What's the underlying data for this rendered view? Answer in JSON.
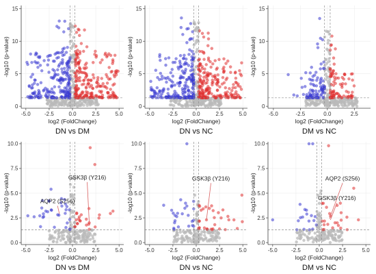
{
  "chart_data": [
    {
      "type": "scatter",
      "title": "DN vs DM",
      "xlabel": "log2 (FoldChange)",
      "ylabel": "-log10 (p-value)",
      "xlim": [
        -5.5,
        5.5
      ],
      "ylim": [
        -0.3,
        15.5
      ],
      "xticks": [
        -5.0,
        -2.5,
        0.0,
        2.5,
        5.0
      ],
      "xtick_labels": [
        "-5.0",
        "-2.5",
        "0.0",
        "2.5",
        "5.0"
      ],
      "yticks": [
        0,
        5,
        10,
        15
      ],
      "ytick_labels": [
        "0",
        "5",
        "10",
        "15"
      ],
      "threshold_x": [
        -0.26,
        0.26
      ],
      "threshold_y": 1.3,
      "grid": true,
      "annotations": [],
      "clusters": [
        {
          "series": "down",
          "x": [
            -4.9,
            -0.26
          ],
          "y": [
            1.3,
            8.5
          ],
          "n": 190,
          "skew": 0.4
        },
        {
          "series": "down",
          "x": [
            -1.8,
            -0.26
          ],
          "y": [
            4,
            14.5
          ],
          "n": 35,
          "skew": 0.5
        },
        {
          "series": "up",
          "x": [
            0.26,
            4.9
          ],
          "y": [
            1.3,
            8.5
          ],
          "n": 200,
          "skew": 0.4
        },
        {
          "series": "up",
          "x": [
            0.26,
            1.8
          ],
          "y": [
            4,
            13
          ],
          "n": 30,
          "skew": 0.5
        },
        {
          "series": "ns",
          "x": [
            -2.8,
            2.8
          ],
          "y": [
            0,
            1.3
          ],
          "n": 160,
          "skew": 1
        },
        {
          "series": "ns",
          "x": [
            -0.26,
            0.26
          ],
          "y": [
            0,
            13
          ],
          "n": 60,
          "skew": 0.7
        }
      ]
    },
    {
      "type": "scatter",
      "title": "DN vs NC",
      "xlabel": "log2 (FoldChange)",
      "ylabel": "-log10 (p-value)",
      "xlim": [
        -5.5,
        5.5
      ],
      "ylim": [
        -0.3,
        15.5
      ],
      "xticks": [
        -5.0,
        -2.5,
        0.0,
        2.5,
        5.0
      ],
      "xtick_labels": [
        "-5.0",
        "-2.5",
        "0.0",
        "2.5",
        "5.0"
      ],
      "yticks": [
        0,
        5,
        10,
        15
      ],
      "ytick_labels": [
        "0",
        "5",
        "10",
        "15"
      ],
      "threshold_x": [
        -0.26,
        0.26
      ],
      "threshold_y": 1.3,
      "grid": true,
      "annotations": [],
      "clusters": [
        {
          "series": "down",
          "x": [
            -4.9,
            -0.26
          ],
          "y": [
            1.3,
            8
          ],
          "n": 200,
          "skew": 0.4
        },
        {
          "series": "down",
          "x": [
            -1.8,
            -0.26
          ],
          "y": [
            4,
            14.5
          ],
          "n": 35,
          "skew": 0.5
        },
        {
          "series": "up",
          "x": [
            0.26,
            4.9
          ],
          "y": [
            1.3,
            7.5
          ],
          "n": 200,
          "skew": 0.4
        },
        {
          "series": "up",
          "x": [
            0.26,
            1.8
          ],
          "y": [
            4,
            12
          ],
          "n": 25,
          "skew": 0.5
        },
        {
          "series": "ns",
          "x": [
            -2.8,
            2.8
          ],
          "y": [
            0,
            1.3
          ],
          "n": 160,
          "skew": 1
        },
        {
          "series": "ns",
          "x": [
            -0.26,
            0.26
          ],
          "y": [
            0,
            13
          ],
          "n": 55,
          "skew": 0.7
        }
      ]
    },
    {
      "type": "scatter",
      "title": "DM vs NC",
      "xlabel": "log2 (FoldChange)",
      "ylabel": "-log10 (p-value)",
      "xlim": [
        -5.5,
        4.0
      ],
      "ylim": [
        -0.3,
        15.5
      ],
      "xticks": [
        -5.0,
        -2.5,
        0.0,
        2.5
      ],
      "xtick_labels": [
        "-5.0",
        "-2.5",
        "0.0",
        "2.5"
      ],
      "yticks": [
        0,
        5,
        10,
        15
      ],
      "ytick_labels": [
        "0",
        "5",
        "10",
        "15"
      ],
      "threshold_x": [
        -0.26,
        0.26
      ],
      "threshold_y": 1.3,
      "grid": true,
      "annotations": [],
      "clusters": [
        {
          "series": "down",
          "x": [
            -2.0,
            -0.26
          ],
          "y": [
            1.3,
            6
          ],
          "n": 70,
          "skew": 0.4
        },
        {
          "series": "down",
          "x": [
            -1.0,
            -0.26
          ],
          "y": [
            3,
            13.5
          ],
          "n": 14,
          "skew": 0.5
        },
        {
          "series": "down",
          "x": [
            -4.0,
            -1.5
          ],
          "y": [
            1.3,
            5
          ],
          "n": 10,
          "skew": 0.6
        },
        {
          "series": "up",
          "x": [
            0.26,
            2.5
          ],
          "y": [
            1.3,
            6
          ],
          "n": 80,
          "skew": 0.4
        },
        {
          "series": "up",
          "x": [
            0.26,
            1.0
          ],
          "y": [
            3,
            11
          ],
          "n": 12,
          "skew": 0.5
        },
        {
          "series": "ns",
          "x": [
            -2.0,
            2.8
          ],
          "y": [
            0,
            1.3
          ],
          "n": 160,
          "skew": 1
        },
        {
          "series": "ns",
          "x": [
            -0.26,
            0.26
          ],
          "y": [
            0,
            12
          ],
          "n": 55,
          "skew": 0.7
        }
      ]
    },
    {
      "type": "scatter",
      "title": "DN vs DM",
      "xlabel": "log2 (FoldChange)",
      "ylabel": "-log10 (p-value)",
      "xlim": [
        -5.5,
        5.5
      ],
      "ylim": [
        -0.2,
        10.2
      ],
      "xticks": [
        -5.0,
        -2.5,
        0.0,
        2.5,
        5.0
      ],
      "xtick_labels": [
        "-5.0",
        "-2.5",
        "0.0",
        "2.5",
        "5.0"
      ],
      "yticks": [
        0.0,
        2.5,
        5.0,
        7.5,
        10.0
      ],
      "ytick_labels": [
        "0.0",
        "2.5",
        "5.0",
        "7.5",
        "10.0"
      ],
      "threshold_x": [
        -0.26,
        0.26
      ],
      "threshold_y": 1.3,
      "grid": true,
      "annotations": [
        {
          "text": "GSK3β (Y216)",
          "x": 1.58,
          "y": 6.4,
          "point": [
            1.8,
            2.0
          ]
        },
        {
          "text": "AQP2 (S256)",
          "x": -1.6,
          "y": 4.0,
          "point": [
            -1.4,
            2.9
          ]
        }
      ],
      "clusters": [
        {
          "series": "down",
          "x": [
            -3.5,
            -0.26
          ],
          "y": [
            1.3,
            4.5
          ],
          "n": 28,
          "skew": 0.6
        },
        {
          "series": "down",
          "x": [
            -5.0,
            -3.5
          ],
          "y": [
            1.3,
            3.5
          ],
          "n": 3,
          "skew": 1
        },
        {
          "series": "up",
          "x": [
            0.26,
            5.0
          ],
          "y": [
            1.3,
            4.0
          ],
          "n": 22,
          "skew": 0.6
        },
        {
          "series": "ns",
          "x": [
            -2.5,
            2.5
          ],
          "y": [
            0,
            1.3
          ],
          "n": 120,
          "skew": 1
        },
        {
          "series": "ns",
          "x": [
            -0.26,
            0.26
          ],
          "y": [
            0,
            6.5
          ],
          "n": 35,
          "skew": 0.7
        }
      ],
      "points": [
        {
          "series": "down",
          "x": -2.3,
          "y": 5.4
        },
        {
          "series": "down",
          "x": -2.5,
          "y": 4.2
        },
        {
          "series": "up",
          "x": 1.8,
          "y": 2.0
        },
        {
          "series": "up",
          "x": 1.9,
          "y": 9.6
        },
        {
          "series": "up",
          "x": 2.4,
          "y": 7.9
        }
      ]
    },
    {
      "type": "scatter",
      "title": "DN vs NC",
      "xlabel": "log2 (FoldChange)",
      "ylabel": "-log10 (p-value)",
      "xlim": [
        -5.5,
        5.5
      ],
      "ylim": [
        -0.2,
        10.2
      ],
      "xticks": [
        -5.0,
        -2.5,
        0.0,
        2.5,
        5.0
      ],
      "xtick_labels": [
        "-5.0",
        "-2.5",
        "0.0",
        "2.5",
        "5.0"
      ],
      "yticks": [
        0.0,
        2.5,
        5.0,
        7.5,
        10.0
      ],
      "ytick_labels": [
        "0.0",
        "2.5",
        "5.0",
        "7.5",
        "10.0"
      ],
      "threshold_x": [
        -0.26,
        0.26
      ],
      "threshold_y": 1.3,
      "grid": true,
      "annotations": [
        {
          "text": "GSK3β (Y216)",
          "x": 1.58,
          "y": 6.3,
          "point": [
            1.1,
            2.3
          ]
        }
      ],
      "clusters": [
        {
          "series": "down",
          "x": [
            -3.5,
            -0.26
          ],
          "y": [
            1.3,
            4.5
          ],
          "n": 24,
          "skew": 0.6
        },
        {
          "series": "up",
          "x": [
            0.26,
            5.0
          ],
          "y": [
            1.3,
            4.0
          ],
          "n": 30,
          "skew": 0.6
        },
        {
          "series": "ns",
          "x": [
            -2.5,
            2.5
          ],
          "y": [
            0,
            1.3
          ],
          "n": 120,
          "skew": 1
        },
        {
          "series": "ns",
          "x": [
            -0.26,
            0.26
          ],
          "y": [
            0,
            5.5
          ],
          "n": 30,
          "skew": 0.7
        }
      ],
      "points": [
        {
          "series": "down",
          "x": -1.0,
          "y": 10.0
        },
        {
          "series": "up",
          "x": 1.1,
          "y": 2.3
        },
        {
          "series": "up",
          "x": 4.9,
          "y": 4.8
        },
        {
          "series": "up",
          "x": 3.5,
          "y": 2.3
        }
      ]
    },
    {
      "type": "scatter",
      "title": "DM vs NC",
      "xlabel": "log2 (FoldChange)",
      "ylabel": "-log10 (p-value)",
      "xlim": [
        -5.5,
        5.5
      ],
      "ylim": [
        -0.2,
        10.2
      ],
      "xticks": [
        -5.0,
        -2.5,
        0.0,
        2.5,
        5.0
      ],
      "xtick_labels": [
        "-5.0",
        "-2.5",
        "0.0",
        "2.5",
        "5.0"
      ],
      "yticks": [
        0.0,
        2.5,
        5.0,
        7.5,
        10.0
      ],
      "ytick_labels": [
        "0.0",
        "2.5",
        "5.0",
        "7.5",
        "10.0"
      ],
      "threshold_x": [
        -0.26,
        0.26
      ],
      "threshold_y": 1.3,
      "grid": true,
      "annotations": [
        {
          "text": "AQP2 (S256)",
          "x": 2.5,
          "y": 6.3,
          "point": [
            1.1,
            2.4
          ]
        },
        {
          "text": "GSK3β (Y216)",
          "x": 1.9,
          "y": 4.3,
          "point": [
            1.2,
            2.3
          ]
        }
      ],
      "clusters": [
        {
          "series": "down",
          "x": [
            -2.5,
            -0.26
          ],
          "y": [
            1.3,
            4.0
          ],
          "n": 16,
          "skew": 0.6
        },
        {
          "series": "up",
          "x": [
            0.26,
            3.0
          ],
          "y": [
            1.3,
            4.0
          ],
          "n": 22,
          "skew": 0.6
        },
        {
          "series": "ns",
          "x": [
            -2.5,
            2.5
          ],
          "y": [
            0,
            1.3
          ],
          "n": 110,
          "skew": 1
        },
        {
          "series": "ns",
          "x": [
            -0.26,
            0.26
          ],
          "y": [
            0,
            5.5
          ],
          "n": 30,
          "skew": 0.7
        }
      ],
      "points": [
        {
          "series": "down",
          "x": -1.1,
          "y": 10.0
        },
        {
          "series": "down",
          "x": -0.7,
          "y": 10.0
        },
        {
          "series": "down",
          "x": -5.0,
          "y": 2.3
        },
        {
          "series": "up",
          "x": 1.0,
          "y": 9.8
        },
        {
          "series": "up",
          "x": 3.7,
          "y": 5.5
        },
        {
          "series": "up",
          "x": 4.2,
          "y": 2.3
        }
      ]
    }
  ],
  "colors": {
    "down": "#3b3bd1",
    "up": "#e03030",
    "ns": "#b9b9b9",
    "threshold": "#8c8c8c",
    "grid": "#ececec",
    "axis": "#404040",
    "callout": "#d96060"
  }
}
